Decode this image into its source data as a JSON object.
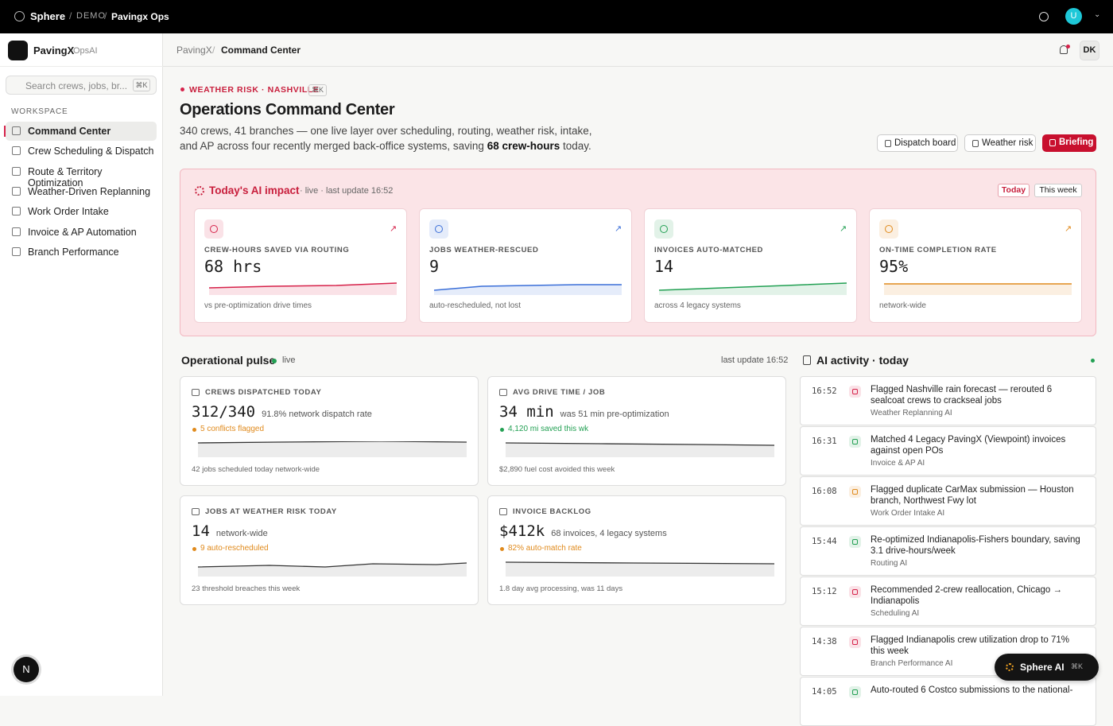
{
  "topbar": {
    "brand": "Sphere",
    "crumbs": [
      "DEMO",
      "Pavingx Ops"
    ],
    "avatar": "U"
  },
  "sidebar": {
    "app": "PavingX",
    "app_sub": "OpsAI",
    "search": "Search crews, jobs, br...",
    "search_kbd": "⌘K",
    "section": "WORKSPACE",
    "nav": [
      "Command Center",
      "Crew Scheduling & Dispatch",
      "Route & Territory Optimization",
      "Weather-Driven Replanning",
      "Work Order Intake",
      "Invoice & AP Automation",
      "Branch Performance"
    ],
    "fab": "N"
  },
  "header": {
    "crumbs": [
      "PavingX",
      "Command Center"
    ],
    "user": "DK"
  },
  "hero": {
    "tag": "WEATHER RISK · NASHVILLE",
    "tag_kbd": "⌘K",
    "title": "Operations Command Center",
    "desc": [
      "340 crews, 41 branches — one live layer over scheduling, routing, weather risk, intake, and AP across four recently merged back-office systems, saving ",
      "68 crew-hours",
      " today."
    ],
    "buttons": [
      "Dispatch board",
      "Weather risk",
      "Briefing"
    ]
  },
  "impact": {
    "title": "Today's AI impact",
    "status": "· live · last update 16:52",
    "tabs": [
      "Today",
      "This week"
    ],
    "cards": [
      {
        "label": "CREW-HOURS SAVED VIA ROUTING",
        "value": "68 hrs",
        "note": "vs pre-optimization drive times",
        "color": "#d6224a"
      },
      {
        "label": "JOBS WEATHER-RESCUED",
        "value": "9",
        "note": "auto-rescheduled, not lost",
        "color": "#3b6fd8"
      },
      {
        "label": "INVOICES AUTO-MATCHED",
        "value": "14",
        "note": "across 4 legacy systems",
        "color": "#22a053"
      },
      {
        "label": "ON-TIME COMPLETION RATE",
        "value": "95%",
        "note": "network-wide",
        "color": "#e08a1c"
      }
    ]
  },
  "pulse": {
    "title": "Operational pulse",
    "status": "live",
    "updated": "last update 16:52",
    "cards": [
      {
        "label": "CREWS DISPATCHED TODAY",
        "value": "312/340",
        "sub": "91.8% network dispatch rate",
        "flag": "5 conflicts flagged",
        "flag_color": "#e08a1c",
        "foot": "42 jobs scheduled today network-wide"
      },
      {
        "label": "AVG DRIVE TIME / JOB",
        "value": "34 min",
        "sub": "was 51 min pre-optimization",
        "flag": "4,120 mi saved this wk",
        "flag_color": "#22a053",
        "foot": "$2,890 fuel cost avoided this week"
      },
      {
        "label": "JOBS AT WEATHER RISK TODAY",
        "value": "14",
        "sub": "network-wide",
        "flag": "9 auto-rescheduled",
        "flag_color": "#e08a1c",
        "foot": "23 threshold breaches this week"
      },
      {
        "label": "INVOICE BACKLOG",
        "value": "$412k",
        "sub": "68 invoices, 4 legacy systems",
        "flag": "82% auto-match rate",
        "flag_color": "#e08a1c",
        "foot": "1.8 day avg processing, was 11 days"
      }
    ]
  },
  "activity": {
    "title": "AI activity · today",
    "items": [
      {
        "time": "16:52",
        "text": "Flagged Nashville rain forecast — rerouted 6 sealcoat crews to crackseal jobs",
        "source": "Weather Replanning AI",
        "color": "#d6224a"
      },
      {
        "time": "16:31",
        "text": "Matched 4 Legacy PavingX (Viewpoint) invoices against open POs",
        "source": "Invoice & AP AI",
        "color": "#22a053"
      },
      {
        "time": "16:08",
        "text": "Flagged duplicate CarMax submission — Houston branch, Northwest Fwy lot",
        "source": "Work Order Intake AI",
        "color": "#e08a1c"
      },
      {
        "time": "15:44",
        "text": "Re-optimized Indianapolis-Fishers boundary, saving 3.1 drive-hours/week",
        "source": "Routing AI",
        "color": "#22a053"
      },
      {
        "time": "15:12",
        "text": "Recommended 2-crew reallocation, Chicago → Indianapolis",
        "source": "Scheduling AI",
        "color": "#d6224a"
      },
      {
        "time": "14:38",
        "text": "Flagged Indianapolis crew utilization drop to 71% this week",
        "source": "Branch Performance AI",
        "color": "#d6224a"
      },
      {
        "time": "14:05",
        "text": "Auto-routed 6 Costco submissions to the national-",
        "source": "",
        "color": "#22a053"
      }
    ]
  },
  "assistant": {
    "label": "Sphere AI",
    "kbd": "⌘K"
  }
}
